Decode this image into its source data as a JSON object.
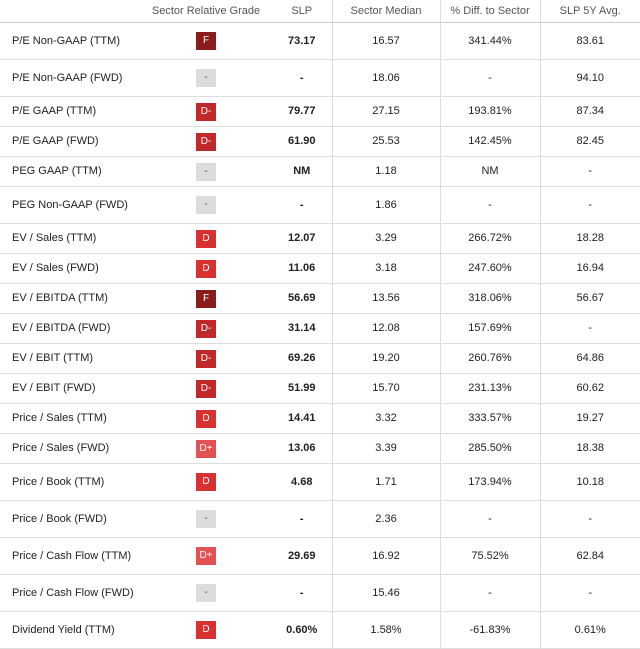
{
  "table": {
    "header": [
      "Sector Relative Grade",
      "SLP",
      "Sector Median",
      "% Diff. to Sector",
      "SLP 5Y Avg."
    ],
    "rows": [
      [
        "P/E Non-GAAP (TTM)",
        "F",
        "73.17",
        "16.57",
        "341.44%",
        "83.61"
      ],
      [
        "P/E Non-GAAP (FWD)",
        "-",
        "-",
        "18.06",
        "-",
        "94.10"
      ],
      [
        "P/E GAAP (TTM)",
        "D-",
        "79.77",
        "27.15",
        "193.81%",
        "87.34"
      ],
      [
        "P/E GAAP (FWD)",
        "D-",
        "61.90",
        "25.53",
        "142.45%",
        "82.45"
      ],
      [
        "PEG GAAP (TTM)",
        "-",
        "NM",
        "1.18",
        "NM",
        "-"
      ],
      [
        "PEG Non-GAAP (FWD)",
        "-",
        "-",
        "1.86",
        "-",
        "-"
      ],
      [
        "EV / Sales (TTM)",
        "D",
        "12.07",
        "3.29",
        "266.72%",
        "18.28"
      ],
      [
        "EV / Sales (FWD)",
        "D",
        "11.06",
        "3.18",
        "247.60%",
        "16.94"
      ],
      [
        "EV / EBITDA (TTM)",
        "F",
        "56.69",
        "13.56",
        "318.06%",
        "56.67"
      ],
      [
        "EV / EBITDA (FWD)",
        "D-",
        "31.14",
        "12.08",
        "157.69%",
        "-"
      ],
      [
        "EV / EBIT (TTM)",
        "D-",
        "69.26",
        "19.20",
        "260.76%",
        "64.86"
      ],
      [
        "EV / EBIT (FWD)",
        "D-",
        "51.99",
        "15.70",
        "231.13%",
        "60.62"
      ],
      [
        "Price / Sales (TTM)",
        "D",
        "14.41",
        "3.32",
        "333.57%",
        "19.27"
      ],
      [
        "Price / Sales (FWD)",
        "D+",
        "13.06",
        "3.39",
        "285.50%",
        "18.38"
      ],
      [
        "Price / Book (TTM)",
        "D",
        "4.68",
        "1.71",
        "173.94%",
        "10.18"
      ],
      [
        "Price / Book (FWD)",
        "-",
        "-",
        "2.36",
        "-",
        "-"
      ],
      [
        "Price / Cash Flow (TTM)",
        "D+",
        "29.69",
        "16.92",
        "75.52%",
        "62.84"
      ],
      [
        "Price / Cash Flow (FWD)",
        "-",
        "-",
        "15.46",
        "-",
        "-"
      ],
      [
        "Dividend Yield (TTM)",
        "D",
        "0.60%",
        "1.58%",
        "-61.83%",
        "0.61%"
      ]
    ]
  }
}
